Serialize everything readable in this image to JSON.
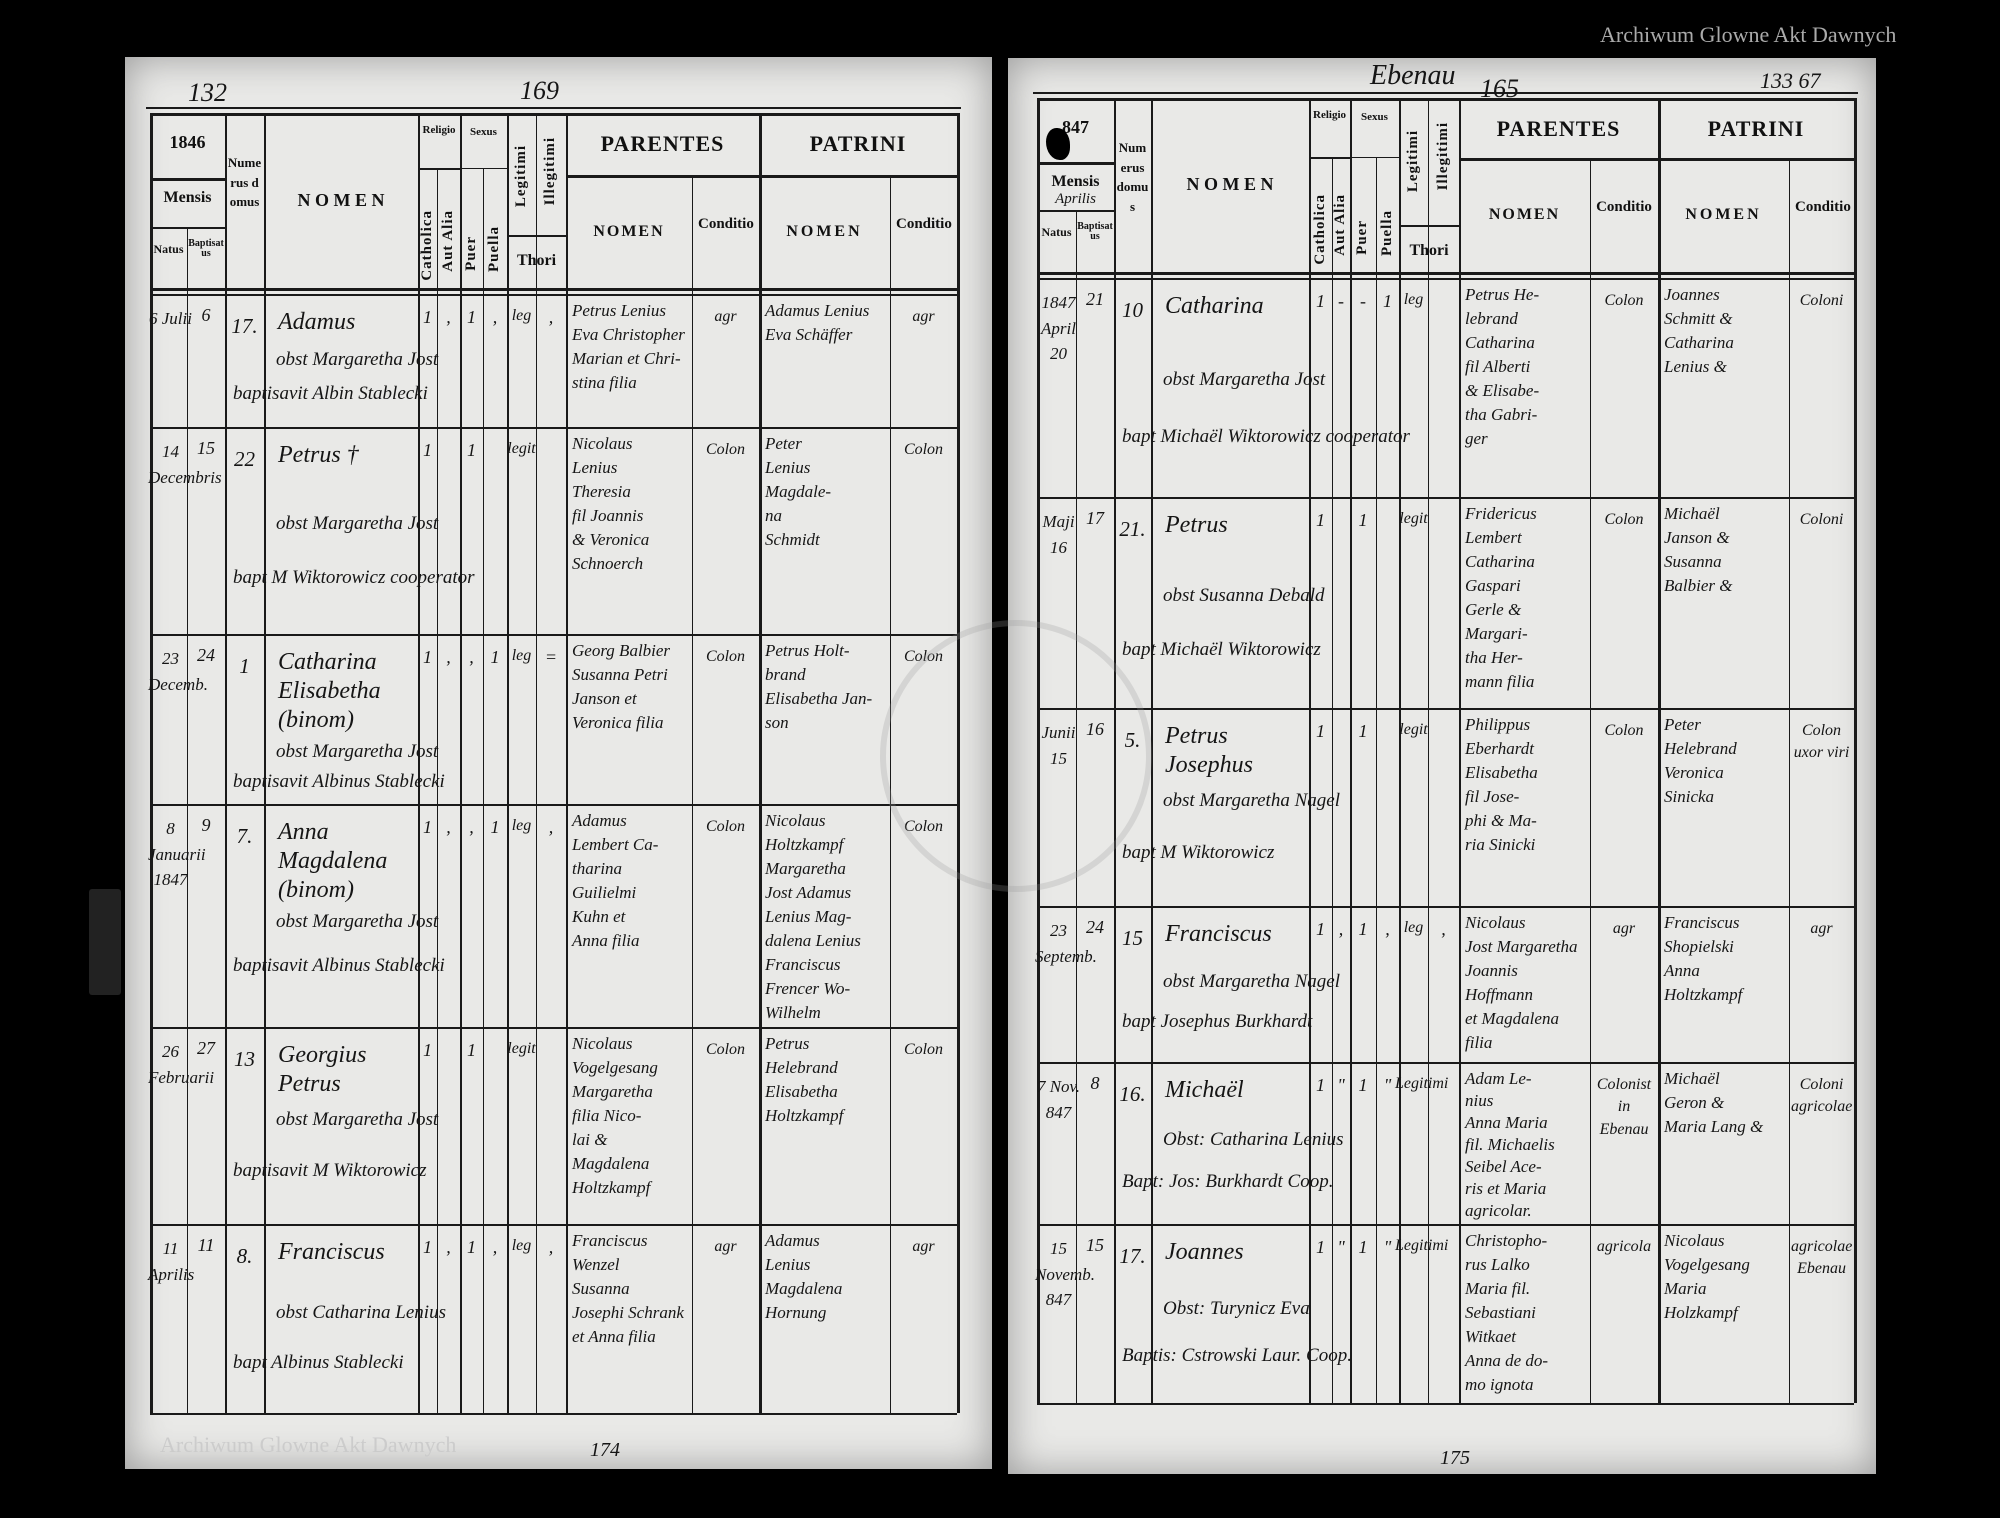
{
  "watermark": "Archiwum Glowne Akt Dawnych",
  "header_labels": {
    "mensis": "Mensis",
    "natus": "Natus",
    "baptisatus": "Baptisatus",
    "numerus_domus": "Numerus domus",
    "nomen": "N O M E N",
    "religio": "Religio",
    "sexus": "Sexus",
    "catholica": "Catholica",
    "aut_alia": "Aut Alia",
    "puer": "Puer",
    "puella": "Puella",
    "legitimi": "Legitimi",
    "illegitimi": "Illegitimi",
    "thori": "Thori",
    "parentes": "PARENTES",
    "patrini": "PATRINI",
    "sub_nomen": "NOMEN",
    "conditio": "Conditio"
  },
  "left_page": {
    "folio": "132",
    "page_number": "169",
    "bottom_number": "174",
    "year": "1846",
    "mensis_value": "",
    "entries": [
      {
        "natus": "6 Julii",
        "baptisatus": "6",
        "domus": "17.",
        "nomen": "Adamus",
        "obstetrix": "obst Margaretha Jost",
        "baptizans": "baptisavit Albin Stablecki",
        "catholica": "1",
        "aut_alia": ",",
        "puer": "1",
        "puella": ",",
        "legitimi": "leg",
        "illegitimi": ",",
        "parentes": [
          "Petrus Lenius",
          "Eva Christopher",
          "Marian et Chri-",
          "stina filia"
        ],
        "parentes_conditio": "agr",
        "patrini": [
          "Adamus Lenius",
          "Eva Schäffer"
        ],
        "patrini_conditio": "agr"
      },
      {
        "natus": "14 Decembris",
        "baptisatus": "15",
        "domus": "22",
        "nomen": "Petrus †",
        "obstetrix": "obst Margaretha Jost",
        "baptizans": "bapt M Wiktorowicz cooperator",
        "catholica": "1",
        "aut_alia": "",
        "puer": "1",
        "puella": "",
        "legitimi": "legit",
        "illegitimi": "",
        "parentes": [
          "Nicolaus",
          "Lenius",
          "Theresia",
          "fil Joannis",
          "& Veronica",
          "Schnoerch"
        ],
        "parentes_conditio": "Colon",
        "patrini": [
          "Peter",
          "Lenius",
          "Magdale-",
          "na",
          "Schmidt"
        ],
        "patrini_conditio": "Colon"
      },
      {
        "natus": "23 Decemb.",
        "baptisatus": "24",
        "domus": "1",
        "nomen": "Catharina Elisabetha (binom)",
        "obstetrix": "obst Margaretha Jost",
        "baptizans": "baptisavit Albinus Stablecki",
        "catholica": "1",
        "aut_alia": ",",
        "puer": ",",
        "puella": "1",
        "legitimi": "leg",
        "illegitimi": "=",
        "parentes": [
          "Georg Balbier",
          "Susanna Petri",
          "Janson et",
          "Veronica filia"
        ],
        "parentes_conditio": "Colon",
        "patrini": [
          "Petrus Holt-",
          "brand",
          "Elisabetha Jan-",
          "son"
        ],
        "patrini_conditio": "Colon"
      },
      {
        "natus": "8 Januarii 1847",
        "baptisatus": "9",
        "domus": "7.",
        "nomen": "Anna Magdalena (binom)",
        "obstetrix": "obst Margaretha Jost",
        "baptizans": "baptisavit Albinus Stablecki",
        "catholica": "1",
        "aut_alia": ",",
        "puer": ",",
        "puella": "1",
        "legitimi": "leg",
        "illegitimi": ",",
        "parentes": [
          "Adamus",
          "Lembert Ca-",
          "tharina",
          "Guilielmi",
          "Kuhn et",
          "Anna filia"
        ],
        "parentes_conditio": "Colon",
        "patrini": [
          "Nicolaus",
          "Holtzkampf",
          "Margaretha",
          "Jost Adamus",
          "Lenius Mag-",
          "dalena Lenius",
          "Franciscus",
          "Frencer Wo-",
          "Wilhelm"
        ],
        "patrini_conditio": "Colon"
      },
      {
        "natus": "26 Februarii",
        "baptisatus": "27",
        "domus": "13",
        "nomen": "Georgius Petrus",
        "obstetrix": "obst Margaretha Jost",
        "baptizans": "baptisavit M Wiktorowicz",
        "catholica": "1",
        "aut_alia": "",
        "puer": "1",
        "puella": "",
        "legitimi": "legit",
        "illegitimi": "",
        "parentes": [
          "Nicolaus",
          "Vogelgesang",
          "Margaretha",
          "filia Nico-",
          "lai &",
          "Magdalena",
          "Holtzkampf"
        ],
        "parentes_conditio": "Colon",
        "patrini": [
          "Petrus",
          "Helebrand",
          "Elisabetha",
          "Holtzkampf"
        ],
        "patrini_conditio": "Colon"
      },
      {
        "natus": "11 Aprilis",
        "baptisatus": "11",
        "domus": "8.",
        "nomen": "Franciscus",
        "obstetrix": "obst Catharina Lenius",
        "baptizans": "bapt Albinus Stablecki",
        "catholica": "1",
        "aut_alia": ",",
        "puer": "1",
        "puella": ",",
        "legitimi": "leg",
        "illegitimi": ",",
        "parentes": [
          "Franciscus",
          "Wenzel",
          "Susanna",
          "Josephi Schrank",
          "et Anna filia"
        ],
        "parentes_conditio": "agr",
        "patrini": [
          "Adamus",
          "Lenius",
          "Magdalena",
          "Hornung"
        ],
        "patrini_conditio": "agr"
      }
    ]
  },
  "right_page": {
    "place": "Ebenau",
    "page_number": "165",
    "folio": "133 67",
    "bottom_number": "175",
    "year": "847",
    "mensis_value": "Aprilis",
    "entries": [
      {
        "natus": "1847 April 20",
        "baptisatus": "21",
        "domus": "10",
        "nomen": "Catharina",
        "obstetrix": "obst Margaretha Jost",
        "baptizans": "bapt Michaël Wiktorowicz cooperator",
        "catholica": "1",
        "aut_alia": "-",
        "puer": "-",
        "puella": "1",
        "legitimi": "leg",
        "illegitimi": "",
        "parentes": [
          "Petrus He-",
          "lebrand",
          "Catharina",
          "fil Alberti",
          "& Elisabe-",
          "tha Gabri-",
          "ger"
        ],
        "parentes_conditio": "Colon",
        "patrini": [
          "Joannes",
          "Schmitt &",
          "Catharina",
          "Lenius &"
        ],
        "patrini_conditio": "Coloni"
      },
      {
        "natus": "Maji 16",
        "baptisatus": "17",
        "domus": "21.",
        "nomen": "Petrus",
        "obstetrix": "obst Susanna Debald",
        "baptizans": "bapt Michaël Wiktorowicz",
        "catholica": "1",
        "aut_alia": "",
        "puer": "1",
        "puella": "",
        "legitimi": "legit",
        "illegitimi": "",
        "parentes": [
          "Fridericus",
          "Lembert",
          "Catharina",
          "Gaspari",
          "Gerle &",
          "Margari-",
          "tha Her-",
          "mann filia"
        ],
        "parentes_conditio": "Colon",
        "patrini": [
          "Michaël",
          "Janson &",
          "Susanna",
          "Balbier &"
        ],
        "patrini_conditio": "Coloni"
      },
      {
        "natus": "Junii 15",
        "baptisatus": "16",
        "domus": "5.",
        "nomen": "Petrus Josephus",
        "obstetrix": "obst Margaretha Nagel",
        "baptizans": "bapt M Wiktorowicz",
        "catholica": "1",
        "aut_alia": "",
        "puer": "1",
        "puella": "",
        "legitimi": "legit",
        "illegitimi": "",
        "parentes": [
          "Philippus",
          "Eberhardt",
          "Elisabetha",
          "fil Jose-",
          "phi & Ma-",
          "ria Sinicki"
        ],
        "parentes_conditio": "Colon",
        "patrini": [
          "Peter",
          "Helebrand",
          "Veronica",
          "Sinicka"
        ],
        "patrini_conditio": "Colon uxor viri"
      },
      {
        "natus": "23 Septemb.",
        "baptisatus": "24",
        "domus": "15",
        "nomen": "Franciscus",
        "obstetrix": "obst Margaretha Nagel",
        "baptizans": "bapt Josephus Burkhardt",
        "catholica": "1",
        "aut_alia": ",",
        "puer": "1",
        "puella": ",",
        "legitimi": "leg",
        "illegitimi": ",",
        "parentes": [
          "Nicolaus",
          "Jost Margaretha",
          "Joannis",
          "Hoffmann",
          "et Magdalena",
          "filia"
        ],
        "parentes_conditio": "agr",
        "patrini": [
          "Franciscus",
          "Shopielski",
          "Anna",
          "Holtzkampf"
        ],
        "patrini_conditio": "agr"
      },
      {
        "natus": "7 Nov. 847",
        "baptisatus": "8",
        "domus": "16.",
        "nomen": "Michaël",
        "obstetrix": "Obst: Catharina Lenius",
        "baptizans": "Bapt: Jos: Burkhardt Coop.",
        "catholica": "1",
        "aut_alia": "\"",
        "puer": "1",
        "puella": "\"",
        "legitimi": "Legitimi",
        "illegitimi": "",
        "parentes": [
          "Adam Le-",
          "nius",
          "Anna Maria",
          "fil. Michaelis",
          "Seibel Ace-",
          "ris et Maria",
          "agricolar."
        ],
        "parentes_conditio": "Colonist in Ebenau",
        "patrini": [
          "Michaël",
          "Geron &",
          "Maria Lang &"
        ],
        "patrini_conditio": "Coloni agricolae"
      },
      {
        "natus": "15 Novemb. 847",
        "baptisatus": "15",
        "domus": "17.",
        "nomen": "Joannes",
        "obstetrix": "Obst: Turynicz Eva",
        "baptizans": "Baptis: Cstrowski Laur. Coop.",
        "catholica": "1",
        "aut_alia": "\"",
        "puer": "1",
        "puella": "\"",
        "legitimi": "Legitimi",
        "illegitimi": "",
        "parentes": [
          "Christopho-",
          "rus Lalko",
          "Maria fil.",
          "Sebastiani",
          "Witkaet",
          "Anna de do-",
          "mo ignota"
        ],
        "parentes_conditio": "agricola",
        "patrini": [
          "Nicolaus",
          "Vogelgesang",
          "Maria",
          "Holzkampf"
        ],
        "patrini_conditio": "agricolae Ebenau"
      }
    ]
  }
}
